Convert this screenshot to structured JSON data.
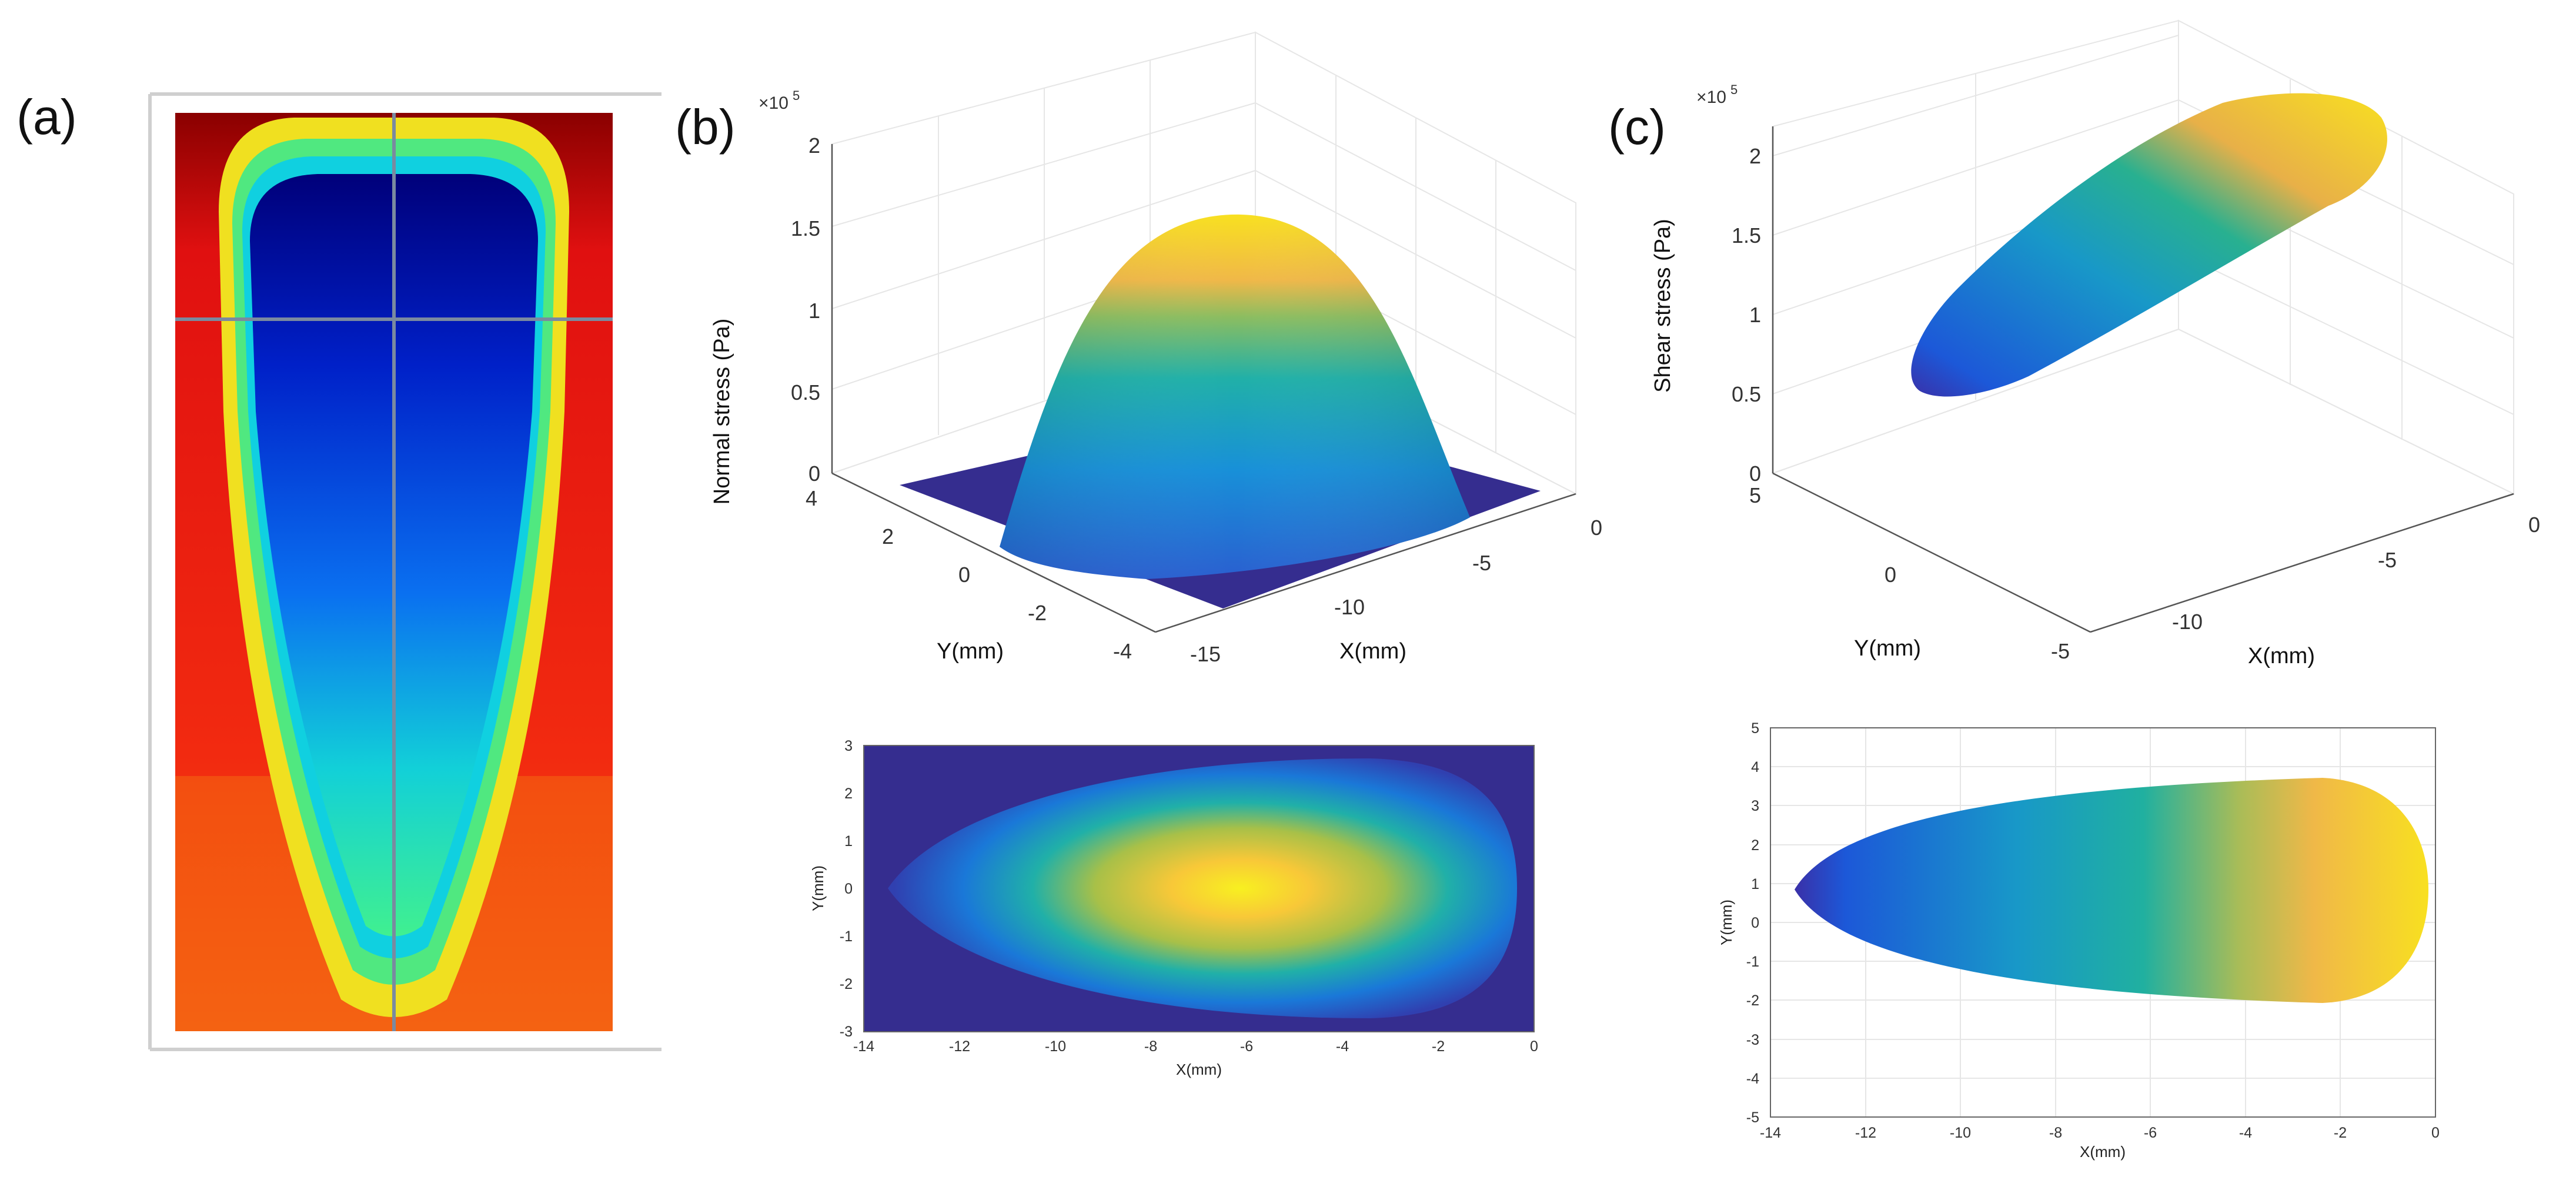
{
  "chart_data": [
    {
      "panel": "(a)",
      "type": "heatmap",
      "title": "",
      "colormap": "jet"
    },
    {
      "panel": "(b)",
      "type": "surface3d",
      "zlabel": "Normal stress (Pa)",
      "ylabel": "Y(mm)",
      "xlabel": "X(mm)",
      "zscale": "×10",
      "zscale_exp": "5",
      "zticks": [
        "0",
        "0.5",
        "1",
        "1.5",
        "2"
      ],
      "zlim": [
        0,
        2
      ],
      "yticks": [
        "4",
        "2",
        "0",
        "-2",
        "-4"
      ],
      "xticks": [
        "-15",
        "-10",
        "-5",
        "0"
      ],
      "peak_value": 1.55,
      "colormap": "parula"
    },
    {
      "panel": "(b)",
      "type": "heatmap",
      "title": "",
      "xlabel": "X(mm)",
      "ylabel": "Y(mm)",
      "xticks": [
        "-14",
        "-12",
        "-10",
        "-8",
        "-6",
        "-4",
        "-2",
        "0"
      ],
      "yticks": [
        "3",
        "2",
        "1",
        "0",
        "-1",
        "-2",
        "-3"
      ],
      "xlim": [
        -14,
        0
      ],
      "ylim": [
        -3,
        3
      ],
      "colormap": "parula"
    },
    {
      "panel": "(c)",
      "type": "surface3d",
      "zlabel": "Shear stress (Pa)",
      "ylabel": "Y(mm)",
      "xlabel": "X(mm)",
      "zscale": "×10",
      "zscale_exp": "5",
      "zticks": [
        "0",
        "0.5",
        "1",
        "1.5",
        "2"
      ],
      "zlim": [
        0,
        2.2
      ],
      "yticks": [
        "5",
        "0",
        "-5"
      ],
      "xticks": [
        "-10",
        "-5",
        "0"
      ],
      "colormap": "parula"
    },
    {
      "panel": "(c)",
      "type": "heatmap",
      "title": "",
      "xlabel": "X(mm)",
      "ylabel": "Y(mm)",
      "xticks": [
        "-14",
        "-12",
        "-10",
        "-8",
        "-6",
        "-4",
        "-2",
        "0"
      ],
      "yticks": [
        "5",
        "4",
        "3",
        "2",
        "1",
        "0",
        "-1",
        "-2",
        "-3",
        "-4",
        "-5"
      ],
      "xlim": [
        -14,
        0
      ],
      "ylim": [
        -5,
        5
      ],
      "colormap": "parula"
    }
  ]
}
